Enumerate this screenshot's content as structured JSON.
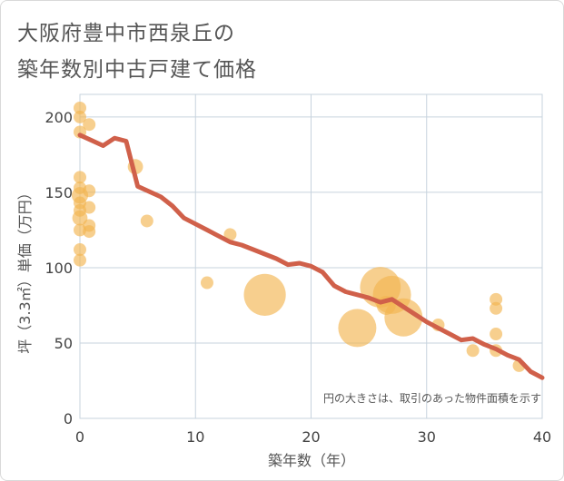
{
  "title_line1": "大阪府豊中市西泉丘の",
  "title_line2": "築年数別中古戸建て価格",
  "chart_data": {
    "type": "scatter",
    "title": "大阪府豊中市西泉丘の築年数別中古戸建て価格",
    "xlabel": "築年数（年）",
    "ylabel": "坪（3.3㎡）単価（万円）",
    "xlim": [
      0,
      40
    ],
    "ylim": [
      0,
      215
    ],
    "x_ticks": [
      "0",
      "10",
      "20",
      "30",
      "40"
    ],
    "y_ticks": [
      "0",
      "50",
      "100",
      "150",
      "200"
    ],
    "x_tick_values": [
      0,
      10,
      20,
      30,
      40
    ],
    "y_tick_values": [
      0,
      50,
      100,
      150,
      200
    ],
    "grid": true,
    "note": "円の大きさは、取引のあった物件面積を示す",
    "colors": {
      "bubble": "#f2b552",
      "line": "#d0604a",
      "grid": "#c7d3de"
    },
    "points": [
      {
        "x": 0,
        "y": 206,
        "size": 1.0
      },
      {
        "x": 0,
        "y": 200,
        "size": 1.0
      },
      {
        "x": 0,
        "y": 190,
        "size": 1.0
      },
      {
        "x": 0,
        "y": 160,
        "size": 1.0
      },
      {
        "x": 0,
        "y": 153,
        "size": 1.0
      },
      {
        "x": 0,
        "y": 148,
        "size": 1.3
      },
      {
        "x": 0,
        "y": 143,
        "size": 1.0
      },
      {
        "x": 0,
        "y": 138,
        "size": 1.0
      },
      {
        "x": 0,
        "y": 133,
        "size": 1.2
      },
      {
        "x": 0,
        "y": 125,
        "size": 1.0
      },
      {
        "x": 0,
        "y": 112,
        "size": 1.0
      },
      {
        "x": 0,
        "y": 105,
        "size": 1.0
      },
      {
        "x": 0.8,
        "y": 195,
        "size": 1.0
      },
      {
        "x": 0.8,
        "y": 151,
        "size": 1.0
      },
      {
        "x": 0.8,
        "y": 140,
        "size": 1.0
      },
      {
        "x": 0.8,
        "y": 128,
        "size": 1.0
      },
      {
        "x": 0.8,
        "y": 124,
        "size": 1.0
      },
      {
        "x": 4.8,
        "y": 167,
        "size": 1.2
      },
      {
        "x": 5.8,
        "y": 131,
        "size": 1.0
      },
      {
        "x": 11,
        "y": 90,
        "size": 1.0
      },
      {
        "x": 13,
        "y": 122,
        "size": 1.0
      },
      {
        "x": 16,
        "y": 82,
        "size": 3.3
      },
      {
        "x": 24,
        "y": 60,
        "size": 3.0
      },
      {
        "x": 26,
        "y": 87,
        "size": 3.2
      },
      {
        "x": 27,
        "y": 82,
        "size": 3.0
      },
      {
        "x": 26.5,
        "y": 75,
        "size": 1.5
      },
      {
        "x": 28,
        "y": 67,
        "size": 3.0
      },
      {
        "x": 31,
        "y": 62,
        "size": 1.0
      },
      {
        "x": 34,
        "y": 45,
        "size": 1.0
      },
      {
        "x": 36,
        "y": 79,
        "size": 1.0
      },
      {
        "x": 36,
        "y": 73,
        "size": 1.0
      },
      {
        "x": 36,
        "y": 56,
        "size": 1.0
      },
      {
        "x": 36,
        "y": 45,
        "size": 1.0
      },
      {
        "x": 38,
        "y": 35,
        "size": 1.0
      }
    ],
    "trend_line": {
      "x": [
        0,
        2,
        3,
        4,
        5,
        7,
        8,
        9,
        10,
        11,
        12,
        13,
        14,
        15,
        16,
        17,
        18,
        19,
        20,
        21,
        22,
        23,
        24,
        25,
        26,
        27,
        28,
        29,
        30,
        31,
        32,
        33,
        34,
        35,
        36,
        37,
        38,
        39,
        40
      ],
      "y": [
        188,
        181,
        186,
        184,
        154,
        147,
        141,
        133,
        129,
        125,
        121,
        117,
        115,
        112,
        109,
        106,
        102,
        103,
        101,
        97,
        88,
        84,
        82,
        80,
        77,
        79,
        74,
        69,
        64,
        60,
        56,
        52,
        53,
        49,
        46,
        42,
        39,
        31,
        27
      ]
    }
  }
}
